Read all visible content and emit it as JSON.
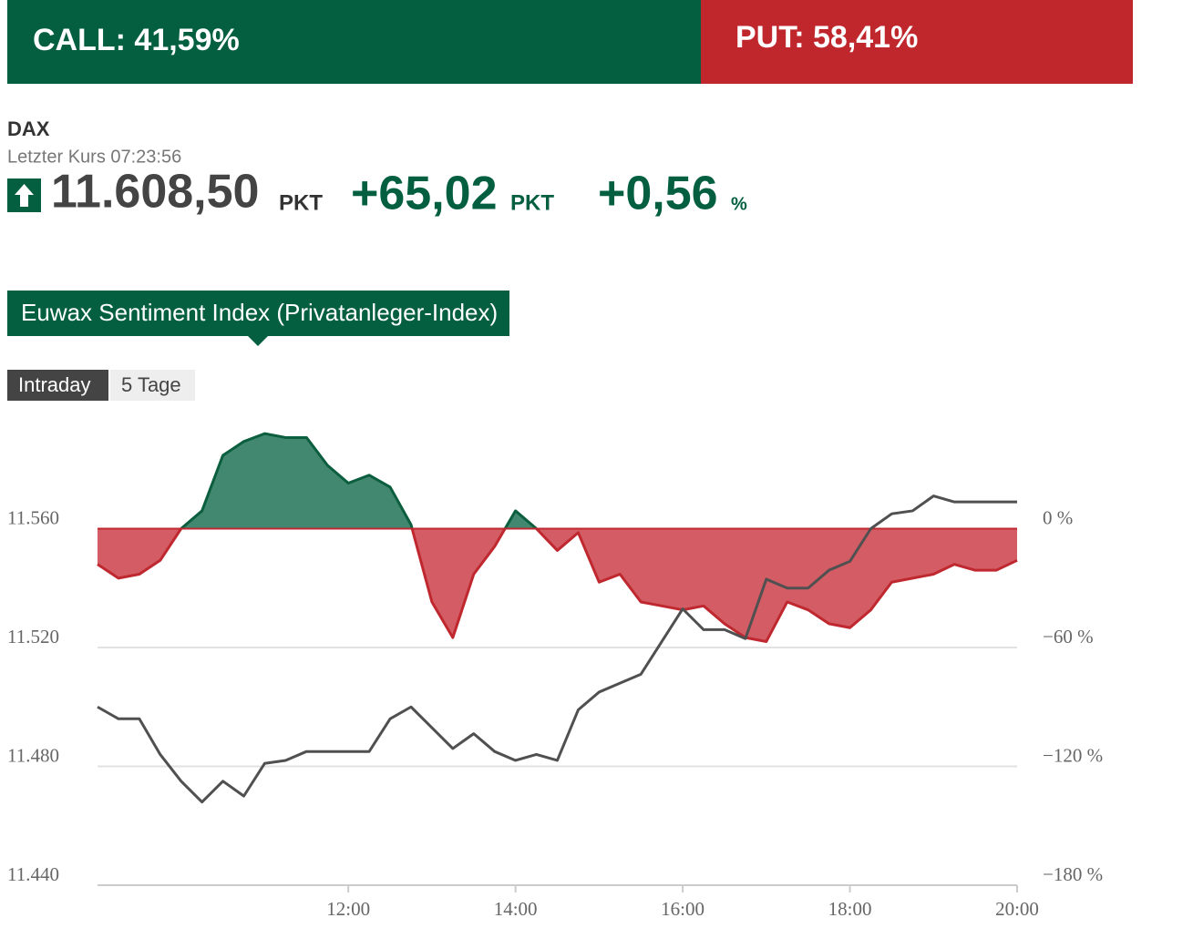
{
  "header": {
    "call": "CALL: 41,59%",
    "put": "PUT: 58,41%"
  },
  "quote": {
    "name": "DAX",
    "time": "Letzter Kurs 07:23:56",
    "price": "11.608,50",
    "price_unit": "PKT",
    "change": "+65,02",
    "change_unit": "PKT",
    "change_pct": "+0,56",
    "pct_unit": "%"
  },
  "tab": "Euwax Sentiment Index (Privatanleger-Index)",
  "buttons": [
    "Intraday",
    "5 Tage"
  ],
  "chart_data": {
    "type": "line",
    "x": [
      "09:00",
      "09:15",
      "09:30",
      "09:45",
      "10:00",
      "10:15",
      "10:30",
      "10:45",
      "11:00",
      "11:15",
      "11:30",
      "11:45",
      "12:00",
      "12:15",
      "12:30",
      "12:45",
      "13:00",
      "13:15",
      "13:30",
      "13:45",
      "14:00",
      "14:15",
      "14:30",
      "14:45",
      "15:00",
      "15:15",
      "15:30",
      "15:45",
      "16:00",
      "16:15",
      "16:30",
      "16:45",
      "17:00",
      "17:15",
      "17:30",
      "17:45",
      "18:00",
      "18:15",
      "18:30",
      "18:45",
      "19:00",
      "19:15",
      "19:30",
      "19:45",
      "20:00"
    ],
    "xlim": [
      "09:00",
      "20:00"
    ],
    "xticks": [
      "12:00",
      "14:00",
      "16:00",
      "18:00",
      "20:00"
    ],
    "ylim": [
      11440,
      11600
    ],
    "yticks": [
      {
        "value": 11440,
        "label": "11.440"
      },
      {
        "value": 11480,
        "label": "11.480"
      },
      {
        "value": 11520,
        "label": "11.520"
      },
      {
        "value": 11560,
        "label": "11.560"
      }
    ],
    "y2lim": [
      -180,
      60
    ],
    "y2ticks": [
      {
        "value": -180,
        "label": "−180 %"
      },
      {
        "value": -120,
        "label": "−120 %"
      },
      {
        "value": -60,
        "label": "−60 %"
      },
      {
        "value": 0,
        "label": "0 %"
      }
    ],
    "grid": true,
    "series": [
      {
        "type": "area",
        "axis": "y2",
        "color_positive": "#0b5e3e",
        "color_negative": "#c0282f",
        "fill_positive": "#428770",
        "fill_negative": "#d35c65",
        "values": [
          -18,
          -25,
          -23,
          -16,
          0,
          9,
          37,
          44,
          48,
          46,
          46,
          32,
          23,
          27,
          21,
          2,
          -37,
          -55,
          -23,
          -9,
          9,
          0,
          -11,
          -2,
          -27,
          -23,
          -37,
          -39,
          -41,
          -39,
          -48,
          -55,
          -57,
          -37,
          -41,
          -48,
          -50,
          -41,
          -27,
          -25,
          -23,
          -18,
          -21,
          -21,
          -16
        ]
      },
      {
        "type": "line",
        "color": "#505050",
        "values": [
          11500,
          11496,
          11496,
          11484,
          11475,
          11468,
          11475,
          11470,
          11481,
          11482,
          11485,
          11485,
          11485,
          11485,
          11496,
          11500,
          11493,
          11486,
          11491,
          11485,
          11482,
          11484,
          11482,
          11499,
          11505,
          11508,
          11511,
          11522,
          11533,
          11526,
          11526,
          11523,
          11543,
          11540,
          11540,
          11546,
          11549,
          11560,
          11565,
          11566,
          11571,
          11569,
          11569,
          11569,
          11569
        ]
      }
    ]
  }
}
